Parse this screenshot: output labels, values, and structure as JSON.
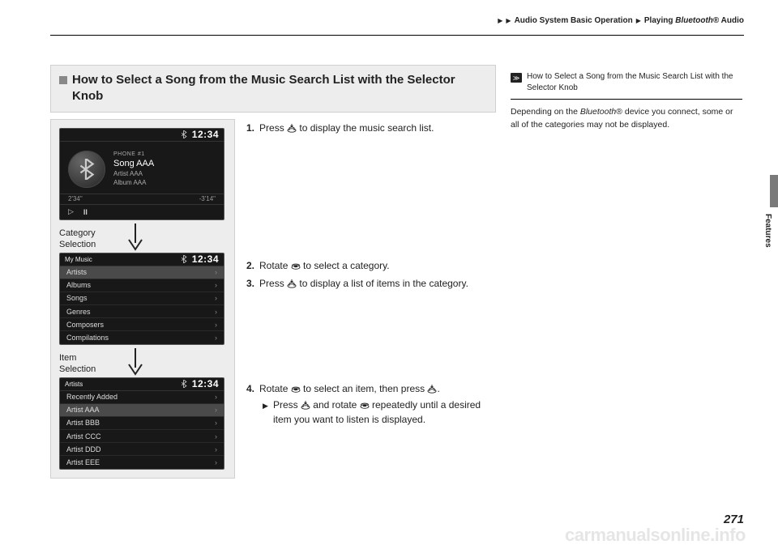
{
  "breadcrumb": {
    "section": "Audio System Basic Operation",
    "subsection_prefix": "Playing ",
    "subsection_brand": "Bluetooth",
    "subsection_suffix": "® Audio"
  },
  "heading": "How to Select a Song from the Music Search List with the Selector Knob",
  "labels": {
    "category": "Category\nSelection",
    "item": "Item\nSelection"
  },
  "screen_common": {
    "clock": "12:34"
  },
  "now_playing": {
    "phone": "PHONE #1",
    "song": "Song AAA",
    "artist": "Artist AAA",
    "album": "Album AAA",
    "elapsed": "2'34\"",
    "remaining": "-3'14\""
  },
  "category_screen": {
    "title": "My Music",
    "items": [
      "Artists",
      "Albums",
      "Songs",
      "Genres",
      "Composers",
      "Compilations"
    ],
    "highlight_index": 0
  },
  "item_screen": {
    "title": "Artists",
    "items": [
      "Recently Added",
      "Artist AAA",
      "Artist BBB",
      "Artist CCC",
      "Artist DDD",
      "Artist EEE"
    ],
    "highlight_index": 1
  },
  "steps": {
    "s1_pre": "Press ",
    "s1_post": " to display the music search list.",
    "s2_pre": "Rotate ",
    "s2_post": " to select a category.",
    "s3_pre": "Press ",
    "s3_post": " to display a list of items in the category.",
    "s4_pre": "Rotate ",
    "s4_mid": " to select an item, then press ",
    "s4_post": ".",
    "s4_sub_pre": "Press ",
    "s4_sub_mid": " and rotate ",
    "s4_sub_post": " repeatedly until a desired item you want to listen is displayed."
  },
  "sidenote": {
    "title": "How to Select a Song from the Music Search List with the Selector Knob",
    "body_pre": "Depending on the ",
    "body_brand": "Bluetooth",
    "body_post": "® device you connect, some or all of the categories may not be displayed."
  },
  "side_tab": "Features",
  "page_number": "271",
  "watermark": "carmanualsonline.info"
}
